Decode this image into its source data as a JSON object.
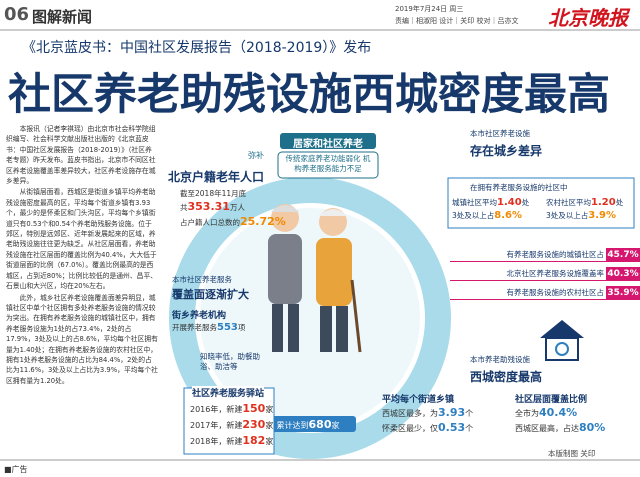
{
  "header": {
    "page_no": "06",
    "section": "图解新闻",
    "date": "2019年7月24日 周三",
    "credits": "责编｜相淑阳 设计｜关印 校对｜吕亦文",
    "masthead": "北京晚报"
  },
  "headline": {
    "kicker": "《北京蓝皮书：中国社区发展报告（2018-2019）》发布",
    "title": "社区养老助残设施西城密度最高"
  },
  "article": {
    "paragraphs": [
      "本报讯（记者李祺瑶）由北京市社会科学院组织编写、社会科学文献出版社出版的《北京蓝皮书：中国社区发展报告（2018-2019）》（社区养老专题）昨天发布。蓝皮书指出，北京市不同区社区养老设施覆盖率差异较大，社区养老设施存在城乡差异。",
      "从街镇层面看，西城区是街道乡镇平均养老助残设施密度最高的区，平均每个街道乡镇有3.93个，最少的是怀柔区和门头沟区，平均每个乡镇街道只有0.53个和0.54个养老助残服务设施。位于郊区，特别是远郊区、近年新发展起来的区域，养老助残设施往往更为缺乏。从社区层面看，养老助残设施在社区层面的覆盖比例为40.4%，大大低于街道层面的比例（67.0%）。覆盖比例最高的是西城区，占到近80%；比例比较低的是通州、昌平、石景山和大兴区，均在20%左右。",
      "此外，城乡社区养老设施覆盖面差异明显，城镇社区中单个社区拥有多处养老服务设施的情况较为突出。在拥有养老服务设施的城镇社区中，拥有养老服务设施为1处的占73.4%，2处的占17.9%，3处及以上的占8.6%，平均每个社区拥有量为1.40处；在拥有养老服务设施的农村社区中，拥有1处养老服务设施的占比为84.4%，2处的占比为11.6%，3处及以上占比为3.9%，平均每个社区拥有量为1.20处。"
    ]
  },
  "center": {
    "title": "居家和社区养老",
    "subtitle": "传统家庭养老功能弱化 机构养老服务能力不足",
    "connector": "弥补"
  },
  "population": {
    "title": "北京户籍老年人口",
    "date": "截至2018年11月底",
    "total_prefix": "共",
    "total": "353.31",
    "total_suffix": "万人",
    "share_prefix": "占户籍人口总数的",
    "share": "25.72%"
  },
  "coverage": {
    "title": "本市社区养老服务",
    "subtitle": "覆盖面逐渐扩大",
    "org_title": "街乡养老机构",
    "org_prefix": "开展养老服务",
    "org_value": "553",
    "org_suffix": "项",
    "issue": "知晓率低，助餐助浴、助洁等"
  },
  "stations": {
    "title": "社区养老服务驿站",
    "rows": [
      {
        "year": "2016年，新建",
        "value": "150",
        "unit": "家"
      },
      {
        "year": "2017年，新建",
        "value": "230",
        "unit": "家"
      },
      {
        "year": "2018年，新建",
        "value": "182",
        "unit": "家"
      }
    ],
    "total_prefix": "累计达到",
    "total": "680",
    "total_unit": "家"
  },
  "urban_rural": {
    "kicker": "本市社区养老设施",
    "title": "存在城乡差异",
    "note": "在拥有养老服务设施的社区中",
    "groups": [
      {
        "avg_label": "城镇社区平均",
        "avg": "1.40",
        "avg_unit": "处",
        "share_label": "3处及以上占",
        "share": "8.6%"
      },
      {
        "avg_label": "农村社区平均",
        "avg": "1.20",
        "avg_unit": "处",
        "share_label": "3处及以上占",
        "share": "3.9%"
      }
    ]
  },
  "bars": [
    {
      "label": "有养老服务设施的城镇社区占",
      "value": "45.7%"
    },
    {
      "label": "北京社区养老服务设施覆盖率",
      "value": "40.3%"
    },
    {
      "label": "有养老服务设施的农村社区占",
      "value": "35.9%"
    }
  ],
  "density": {
    "kicker": "本市养老助残设施",
    "title": "西城密度最高",
    "street": {
      "title": "平均每个街道乡镇",
      "rows": [
        {
          "label": "西城区最多，为",
          "value": "3.93",
          "unit": "个"
        },
        {
          "label": "怀柔区最少，仅",
          "value": "0.53",
          "unit": "个"
        }
      ]
    },
    "community": {
      "title": "社区层面覆盖比例",
      "rows": [
        {
          "label": "全市为",
          "value": "40.4%"
        },
        {
          "label": "西城区最高，占达",
          "value": "80%"
        }
      ]
    }
  },
  "footer": {
    "credit": "本版制图 关印",
    "ad": "■广告"
  }
}
